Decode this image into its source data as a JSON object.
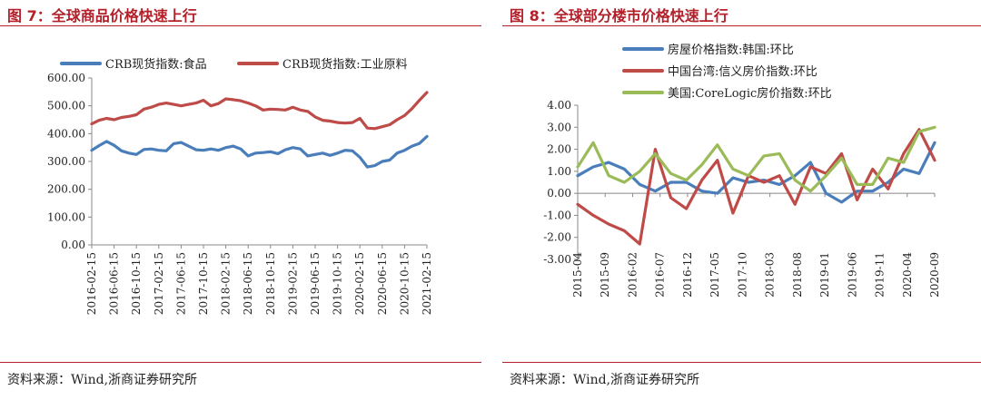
{
  "left": {
    "title": "图 7：全球商品价格快速上行",
    "source": "资料来源：Wind,浙商证券研究所",
    "chart_data": {
      "type": "line",
      "title": "全球商品价格快速上行",
      "x_ticks": [
        "2016-02-15",
        "2016-06-15",
        "2016-10-15",
        "2017-02-15",
        "2017-06-15",
        "2017-10-15",
        "2018-02-15",
        "2018-06-15",
        "2018-10-15",
        "2019-02-15",
        "2019-06-15",
        "2019-10-15",
        "2020-02-15",
        "2020-06-15",
        "2020-10-15",
        "2021-02-15"
      ],
      "y_ticks": [
        "0.00",
        "100.00",
        "200.00",
        "300.00",
        "400.00",
        "500.00",
        "600.00"
      ],
      "ylim": [
        0,
        600
      ],
      "legend_position": "top",
      "series": [
        {
          "name": "CRB现货指数:食品",
          "color": "#4a7ebb",
          "values": [
            340,
            357,
            372,
            358,
            338,
            330,
            325,
            343,
            345,
            340,
            338,
            364,
            368,
            355,
            342,
            340,
            345,
            340,
            350,
            355,
            345,
            320,
            330,
            332,
            335,
            328,
            342,
            350,
            345,
            320,
            325,
            330,
            322,
            330,
            340,
            338,
            315,
            280,
            285,
            300,
            305,
            330,
            340,
            355,
            365,
            390
          ]
        },
        {
          "name": "CRB现货指数:工业原料",
          "color": "#be4b48",
          "values": [
            435,
            448,
            455,
            450,
            458,
            462,
            468,
            488,
            495,
            505,
            510,
            505,
            500,
            505,
            510,
            520,
            500,
            508,
            525,
            522,
            518,
            510,
            500,
            485,
            488,
            487,
            485,
            495,
            485,
            480,
            460,
            448,
            445,
            440,
            438,
            440,
            455,
            420,
            418,
            425,
            432,
            450,
            465,
            490,
            520,
            548
          ]
        }
      ]
    }
  },
  "right": {
    "title": "图 8：全球部分楼市价格快速上行",
    "source": "资料来源：Wind,浙商证券研究所",
    "chart_data": {
      "type": "line",
      "title": "全球部分楼市价格快速上行",
      "x_ticks": [
        "2015-04",
        "2015-09",
        "2016-02",
        "2016-07",
        "2016-12",
        "2017-05",
        "2017-10",
        "2018-03",
        "2018-08",
        "2019-01",
        "2019-06",
        "2019-11",
        "2020-04",
        "2020-09"
      ],
      "y_ticks": [
        "-3.00",
        "-2.00",
        "-1.00",
        "0.00",
        "1.00",
        "2.00",
        "3.00",
        "4.00"
      ],
      "ylim": [
        -3,
        4
      ],
      "legend_position": "top-left",
      "series": [
        {
          "name": "房屋价格指数:韩国:环比",
          "color": "#4a7ebb",
          "values": [
            0.8,
            1.2,
            1.4,
            1.1,
            0.4,
            0.1,
            0.5,
            0.5,
            0.1,
            0.0,
            0.7,
            0.5,
            0.6,
            0.4,
            0.8,
            1.4,
            0.0,
            -0.4,
            0.1,
            0.1,
            0.5,
            1.1,
            0.9,
            2.3
          ]
        },
        {
          "name": "中国台湾:信义房价指数:环比",
          "color": "#be4b48",
          "values": [
            -0.5,
            -1.0,
            -1.4,
            -1.7,
            -2.3,
            2.0,
            -0.2,
            -0.7,
            0.6,
            1.5,
            -0.9,
            0.8,
            0.5,
            0.8,
            -0.5,
            1.2,
            0.9,
            1.8,
            -0.3,
            1.1,
            0.2,
            1.8,
            2.9,
            1.5
          ]
        },
        {
          "name": "美国:CoreLogic房价指数:环比",
          "color": "#9bbb59",
          "values": [
            1.2,
            2.3,
            0.8,
            0.5,
            1.0,
            1.8,
            0.9,
            0.6,
            1.3,
            2.2,
            1.1,
            0.8,
            1.7,
            1.8,
            0.6,
            0.1,
            0.8,
            1.6,
            0.4,
            0.4,
            1.6,
            1.4,
            2.8,
            3.0
          ]
        }
      ]
    }
  }
}
